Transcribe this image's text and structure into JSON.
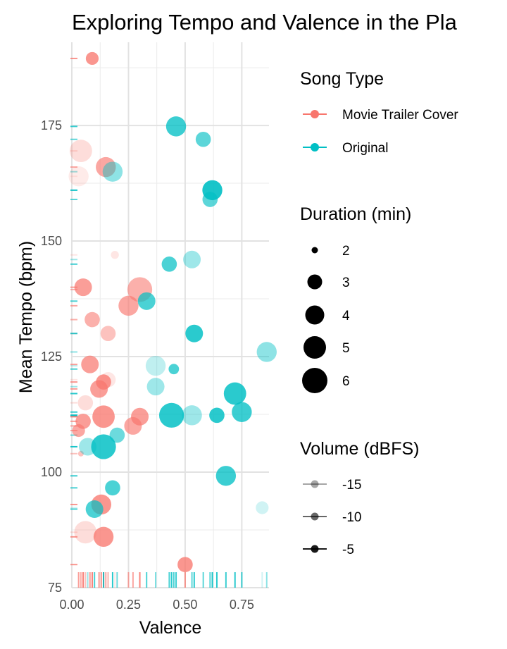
{
  "chart_data": {
    "type": "scatter",
    "title": "Exploring Tempo and Valence in the Pla",
    "xlabel": "Valence",
    "ylabel": "Mean Tempo (bpm)",
    "xlim": [
      0,
      0.87
    ],
    "ylim": [
      75,
      193
    ],
    "x_ticks": [
      "0.00",
      "0.25",
      "0.50",
      "0.75"
    ],
    "x_tick_values": [
      0,
      0.25,
      0.5,
      0.75
    ],
    "y_ticks": [
      "75",
      "100",
      "125",
      "150",
      "175"
    ],
    "y_tick_values": [
      75,
      100,
      125,
      150,
      175
    ],
    "grid": true,
    "rug": true,
    "legend_placement": "right",
    "colors": {
      "movie": "#F8766D",
      "original": "#00BFC4"
    },
    "legends": {
      "type": {
        "title": "Song Type",
        "items": [
          {
            "label": "Movie Trailer Cover",
            "color": "#F8766D"
          },
          {
            "label": "Original",
            "color": "#00BFC4"
          }
        ]
      },
      "size": {
        "title": "Duration (min)",
        "items": [
          {
            "label": "2",
            "value": 2
          },
          {
            "label": "3",
            "value": 3
          },
          {
            "label": "4",
            "value": 4
          },
          {
            "label": "5",
            "value": 5
          },
          {
            "label": "6",
            "value": 6
          }
        ]
      },
      "alpha": {
        "title": "Volume (dBFS)",
        "items": [
          {
            "label": "-15",
            "value": -15
          },
          {
            "label": "-10",
            "value": -10
          },
          {
            "label": "-5",
            "value": -5
          }
        ]
      }
    },
    "series": [
      {
        "name": "Movie Trailer Cover",
        "points": [
          {
            "x": 0.09,
            "y": 189.5,
            "duration": 3.5,
            "volume": -7
          },
          {
            "x": 0.04,
            "y": 169.5,
            "duration": 5.5,
            "volume": -15
          },
          {
            "x": 0.03,
            "y": 164.0,
            "duration": 5.0,
            "volume": -17
          },
          {
            "x": 0.15,
            "y": 166.0,
            "duration": 5.0,
            "volume": -9
          },
          {
            "x": 0.19,
            "y": 147.0,
            "duration": 2.5,
            "volume": -16
          },
          {
            "x": 0.05,
            "y": 140.0,
            "duration": 4.5,
            "volume": -8
          },
          {
            "x": 0.3,
            "y": 139.5,
            "duration": 6.0,
            "volume": -10
          },
          {
            "x": 0.25,
            "y": 136.0,
            "duration": 5.0,
            "volume": -9
          },
          {
            "x": 0.09,
            "y": 133.0,
            "duration": 4.0,
            "volume": -10
          },
          {
            "x": 0.16,
            "y": 130.0,
            "duration": 4.0,
            "volume": -12
          },
          {
            "x": 0.08,
            "y": 123.3,
            "duration": 4.5,
            "volume": -8
          },
          {
            "x": 0.16,
            "y": 120.0,
            "duration": 4.0,
            "volume": -16
          },
          {
            "x": 0.14,
            "y": 119.5,
            "duration": 4.0,
            "volume": -7
          },
          {
            "x": 0.12,
            "y": 118.0,
            "duration": 4.5,
            "volume": -8
          },
          {
            "x": 0.06,
            "y": 115.0,
            "duration": 4.0,
            "volume": -15
          },
          {
            "x": 0.14,
            "y": 112.0,
            "duration": 5.5,
            "volume": -7
          },
          {
            "x": 0.3,
            "y": 112.0,
            "duration": 4.5,
            "volume": -8
          },
          {
            "x": 0.27,
            "y": 110.0,
            "duration": 4.5,
            "volume": -9
          },
          {
            "x": 0.05,
            "y": 111.0,
            "duration": 4.0,
            "volume": -8
          },
          {
            "x": 0.03,
            "y": 109.0,
            "duration": 3.5,
            "volume": -9
          },
          {
            "x": 0.04,
            "y": 104.0,
            "duration": 2.0,
            "volume": -12
          },
          {
            "x": 0.13,
            "y": 93.0,
            "duration": 5.0,
            "volume": -7
          },
          {
            "x": 0.06,
            "y": 87.0,
            "duration": 5.5,
            "volume": -15
          },
          {
            "x": 0.14,
            "y": 86.0,
            "duration": 5.0,
            "volume": -7
          },
          {
            "x": 0.5,
            "y": 80.0,
            "duration": 4.0,
            "volume": -7
          }
        ]
      },
      {
        "name": "Original",
        "points": [
          {
            "x": 0.46,
            "y": 174.8,
            "duration": 5.0,
            "volume": -7
          },
          {
            "x": 0.58,
            "y": 172.0,
            "duration": 4.0,
            "volume": -9
          },
          {
            "x": 0.18,
            "y": 165.0,
            "duration": 5.0,
            "volume": -12
          },
          {
            "x": 0.62,
            "y": 161.0,
            "duration": 5.0,
            "volume": -5
          },
          {
            "x": 0.61,
            "y": 159.0,
            "duration": 4.0,
            "volume": -9
          },
          {
            "x": 0.53,
            "y": 146.0,
            "duration": 4.5,
            "volume": -13
          },
          {
            "x": 0.43,
            "y": 145.0,
            "duration": 4.0,
            "volume": -8
          },
          {
            "x": 0.33,
            "y": 137.0,
            "duration": 4.5,
            "volume": -8
          },
          {
            "x": 0.54,
            "y": 130.0,
            "duration": 4.5,
            "volume": -6
          },
          {
            "x": 0.86,
            "y": 126.0,
            "duration": 5.0,
            "volume": -12
          },
          {
            "x": 0.37,
            "y": 123.0,
            "duration": 5.0,
            "volume": -15
          },
          {
            "x": 0.45,
            "y": 122.3,
            "duration": 3.0,
            "volume": -8
          },
          {
            "x": 0.37,
            "y": 118.5,
            "duration": 4.5,
            "volume": -13
          },
          {
            "x": 0.72,
            "y": 117.0,
            "duration": 5.5,
            "volume": -6
          },
          {
            "x": 0.75,
            "y": 113.0,
            "duration": 5.0,
            "volume": -7
          },
          {
            "x": 0.44,
            "y": 112.3,
            "duration": 6.0,
            "volume": -6
          },
          {
            "x": 0.53,
            "y": 112.3,
            "duration": 5.0,
            "volume": -13
          },
          {
            "x": 0.64,
            "y": 112.3,
            "duration": 4.0,
            "volume": -6
          },
          {
            "x": 0.2,
            "y": 108.0,
            "duration": 4.0,
            "volume": -10
          },
          {
            "x": 0.14,
            "y": 105.5,
            "duration": 6.0,
            "volume": -6
          },
          {
            "x": 0.07,
            "y": 105.5,
            "duration": 4.5,
            "volume": -13
          },
          {
            "x": 0.68,
            "y": 99.2,
            "duration": 5.0,
            "volume": -7
          },
          {
            "x": 0.18,
            "y": 96.6,
            "duration": 4.0,
            "volume": -8
          },
          {
            "x": 0.1,
            "y": 92.0,
            "duration": 4.5,
            "volume": -8
          },
          {
            "x": 0.84,
            "y": 92.3,
            "duration": 3.5,
            "volume": -16
          }
        ]
      }
    ]
  }
}
